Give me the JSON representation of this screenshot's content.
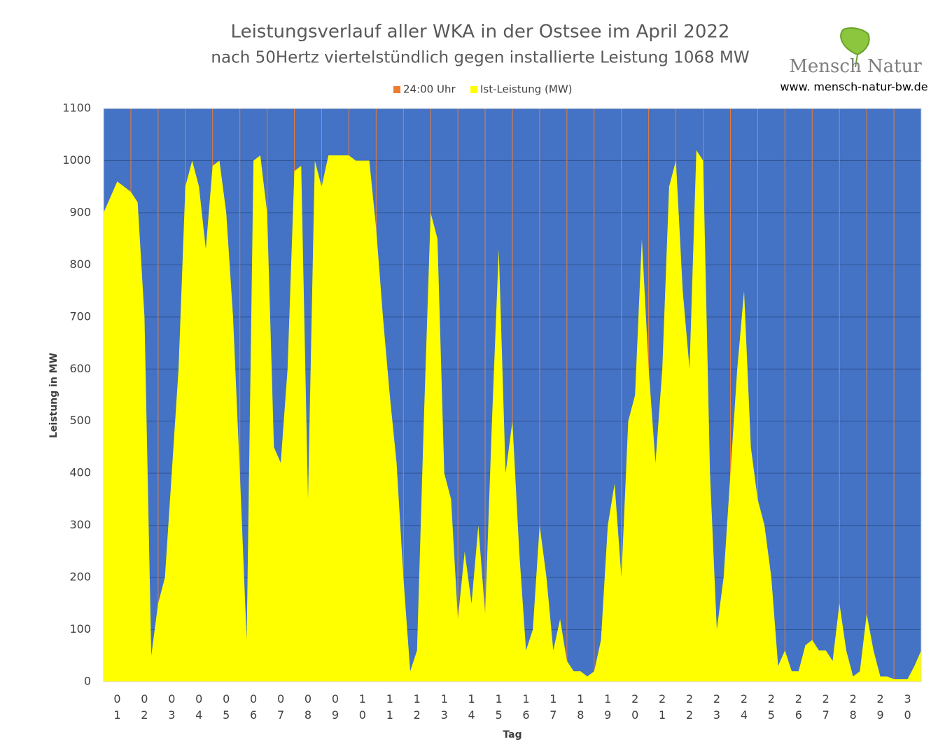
{
  "chart_data": {
    "type": "area",
    "title": "Leistungsverlauf aller WKA in der Ostsee im April 2022",
    "subtitle": "nach 50Hertz viertelstündlich gegen installierte Leistung 1068 MW",
    "ylabel": "Leistung in MW",
    "xlabel": "Tag",
    "logo": {
      "name": "Mensch Natur",
      "url": "www. mensch-natur-bw.de"
    },
    "background": "#4472c4",
    "grid": true,
    "legend": "top",
    "day_lines": {
      "name": "24:00 Uhr",
      "color": "#ed7d31"
    },
    "categories": [
      "01",
      "02",
      "03",
      "04",
      "05",
      "06",
      "07",
      "08",
      "09",
      "10",
      "11",
      "12",
      "13",
      "14",
      "15",
      "16",
      "17",
      "18",
      "19",
      "20",
      "21",
      "22",
      "23",
      "24",
      "25",
      "26",
      "27",
      "28",
      "29",
      "30"
    ],
    "xlim": [
      0,
      30
    ],
    "ylim": [
      0,
      1100
    ],
    "yticks": [
      0,
      100,
      200,
      300,
      400,
      500,
      600,
      700,
      800,
      900,
      1000,
      1100
    ],
    "x": [
      0,
      0.25,
      0.5,
      0.75,
      1,
      1.25,
      1.5,
      1.75,
      2,
      2.25,
      2.5,
      2.75,
      3,
      3.25,
      3.5,
      3.75,
      4,
      4.25,
      4.5,
      4.75,
      5,
      5.25,
      5.5,
      5.75,
      6,
      6.25,
      6.5,
      6.75,
      7,
      7.25,
      7.5,
      7.75,
      8,
      8.25,
      8.5,
      8.75,
      9,
      9.25,
      9.5,
      9.75,
      10,
      10.25,
      10.5,
      10.75,
      11,
      11.25,
      11.5,
      11.75,
      12,
      12.25,
      12.5,
      12.75,
      13,
      13.25,
      13.5,
      13.75,
      14,
      14.25,
      14.5,
      14.75,
      15,
      15.25,
      15.5,
      15.75,
      16,
      16.25,
      16.5,
      16.75,
      17,
      17.25,
      17.5,
      17.75,
      18,
      18.25,
      18.5,
      18.75,
      19,
      19.25,
      19.5,
      19.75,
      20,
      20.25,
      20.5,
      20.75,
      21,
      21.25,
      21.5,
      21.75,
      22,
      22.25,
      22.5,
      22.75,
      23,
      23.25,
      23.5,
      23.75,
      24,
      24.25,
      24.5,
      24.75,
      25,
      25.25,
      25.5,
      25.75,
      26,
      26.25,
      26.5,
      26.75,
      27,
      27.25,
      27.5,
      27.75,
      28,
      28.25,
      28.5,
      28.75,
      29,
      29.25,
      29.5,
      29.75,
      30
    ],
    "series": [
      {
        "name": "Ist-Leistung (MW)",
        "color": "#ffff00",
        "values": [
          900,
          930,
          960,
          950,
          940,
          920,
          700,
          50,
          150,
          200,
          400,
          600,
          950,
          1000,
          950,
          830,
          990,
          1000,
          900,
          700,
          400,
          80,
          1000,
          1010,
          900,
          450,
          420,
          600,
          980,
          990,
          350,
          1000,
          950,
          1010,
          1010,
          1010,
          1010,
          1000,
          1000,
          1000,
          870,
          700,
          550,
          420,
          200,
          20,
          60,
          500,
          900,
          850,
          400,
          350,
          120,
          250,
          150,
          300,
          130,
          500,
          830,
          400,
          500,
          250,
          60,
          100,
          300,
          200,
          60,
          120,
          40,
          20,
          20,
          10,
          20,
          80,
          300,
          380,
          200,
          500,
          550,
          850,
          600,
          420,
          600,
          950,
          1000,
          750,
          600,
          1020,
          1000,
          400,
          100,
          200,
          400,
          600,
          750,
          450,
          350,
          300,
          200,
          30,
          60,
          20,
          20,
          70,
          80,
          60,
          60,
          40,
          150,
          60,
          10,
          20,
          130,
          60,
          10,
          10,
          5,
          5,
          5,
          30,
          60
        ]
      }
    ]
  }
}
